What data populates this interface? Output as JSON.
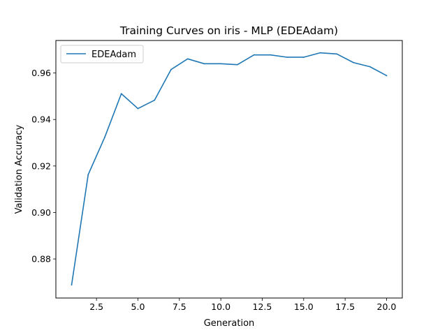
{
  "chart_data": {
    "type": "line",
    "title": "Training Curves on iris - MLP (EDEAdam)",
    "xlabel": "Generation",
    "ylabel": "Validation Accuracy",
    "xlim": [
      0.05,
      20.95
    ],
    "ylim": [
      0.8632,
      0.974
    ],
    "xticks": [
      2.5,
      5.0,
      7.5,
      10.0,
      12.5,
      15.0,
      17.5,
      20.0
    ],
    "xtick_labels": [
      "2.5",
      "5.0",
      "7.5",
      "10.0",
      "12.5",
      "15.0",
      "17.5",
      "20.0"
    ],
    "yticks": [
      0.88,
      0.9,
      0.92,
      0.94,
      0.96
    ],
    "ytick_labels": [
      "0.88",
      "0.90",
      "0.92",
      "0.94",
      "0.96"
    ],
    "grid": false,
    "legend_position": "top-left",
    "series": [
      {
        "name": "EDEAdam",
        "color": "#1f77b4",
        "x": [
          1,
          2,
          3,
          4,
          5,
          6,
          7,
          8,
          9,
          10,
          11,
          12,
          13,
          14,
          15,
          16,
          17,
          18,
          19,
          20
        ],
        "y": [
          0.8689,
          0.9163,
          0.9324,
          0.9511,
          0.9447,
          0.9483,
          0.9615,
          0.9661,
          0.964,
          0.964,
          0.9636,
          0.9678,
          0.9678,
          0.9668,
          0.9668,
          0.9687,
          0.9682,
          0.9645,
          0.9627,
          0.9589
        ]
      }
    ]
  }
}
